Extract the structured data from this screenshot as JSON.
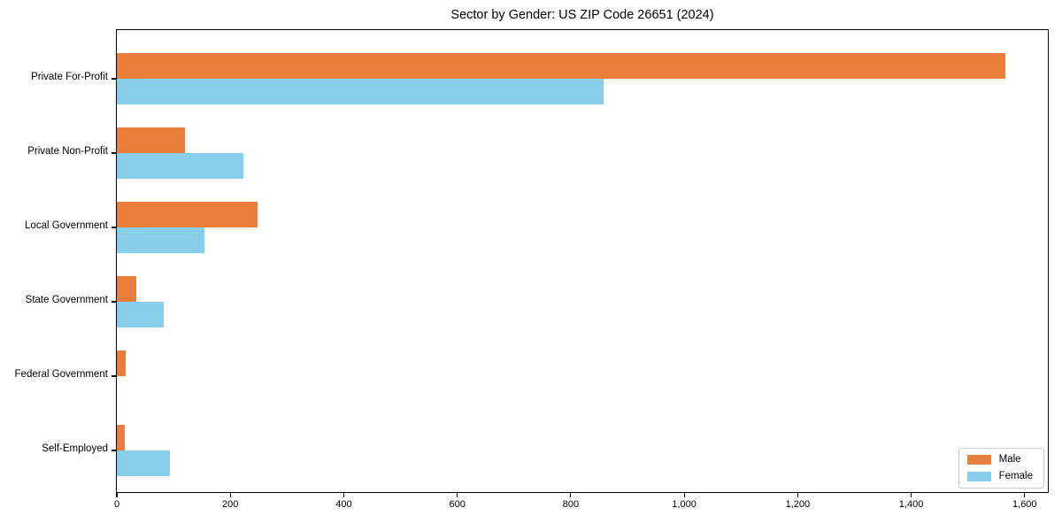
{
  "chart_data": {
    "type": "bar",
    "orientation": "horizontal",
    "title": "Sector by Gender: US ZIP Code 26651 (2024)",
    "categories": [
      "Private For-Profit",
      "Private Non-Profit",
      "Local Government",
      "State Government",
      "Federal Government",
      "Self-Employed"
    ],
    "series": [
      {
        "name": "Male",
        "color": "#e87d3c",
        "values": [
          1566,
          120,
          248,
          34,
          16,
          14
        ]
      },
      {
        "name": "Female",
        "color": "#87ceeb",
        "values": [
          858,
          223,
          154,
          83,
          0,
          93
        ]
      }
    ],
    "xlabel": "",
    "ylabel": "",
    "xlim": [
      0,
      1644
    ],
    "xticks": [
      0,
      200,
      400,
      600,
      800,
      1000,
      1200,
      1400,
      1600
    ],
    "xtick_labels": [
      "0",
      "200",
      "400",
      "600",
      "800",
      "1,000",
      "1,200",
      "1,400",
      "1,600"
    ],
    "grid": false,
    "legend_position": "lower right",
    "axis_color": "#000000",
    "background_color": "#ffffff"
  }
}
